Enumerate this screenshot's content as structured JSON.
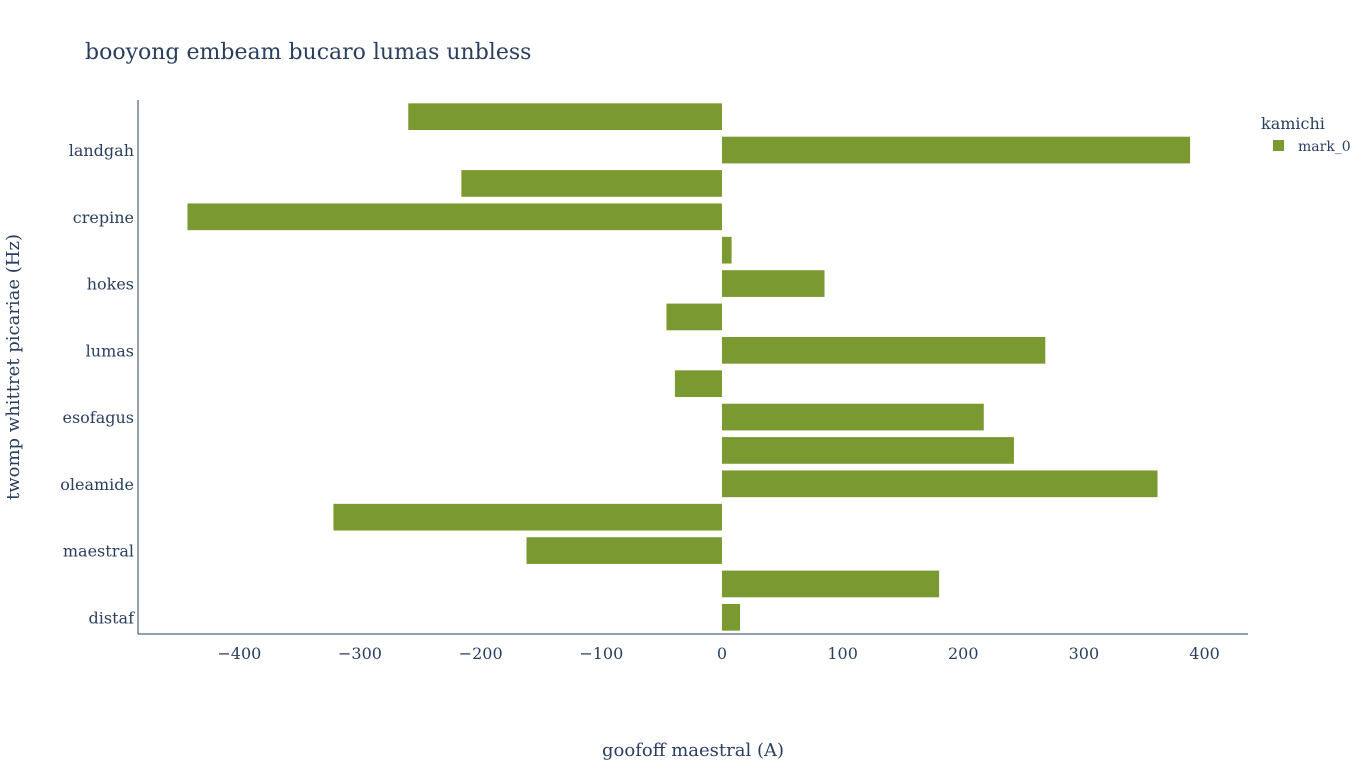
{
  "chart_data": {
    "type": "bar",
    "orientation": "horizontal",
    "title": "booyong embeam bucaro lumas unbless",
    "xlabel": "goofoff maestral (A)",
    "ylabel": "twomp whittret picariae (Hz)",
    "xlim": [
      -484,
      436
    ],
    "xticks": [
      -400,
      -300,
      -200,
      -100,
      0,
      100,
      200,
      300,
      400
    ],
    "xtick_labels": [
      "−400",
      "−300",
      "−200",
      "−100",
      "0",
      "100",
      "200",
      "300",
      "400"
    ],
    "yticks_shown": [
      "landgah",
      "crepine",
      "hokes",
      "lumas",
      "esofagus",
      "oleamide",
      "maestral",
      "distaf"
    ],
    "legend": {
      "title": "kamichi",
      "position": "top-right"
    },
    "series": [
      {
        "name": "mark_0",
        "color": "#7a9a31",
        "values": [
          15,
          180,
          -162,
          -322,
          361,
          242,
          217,
          -39,
          268,
          -46,
          85,
          8,
          -443,
          -216,
          388,
          -260
        ]
      }
    ]
  }
}
